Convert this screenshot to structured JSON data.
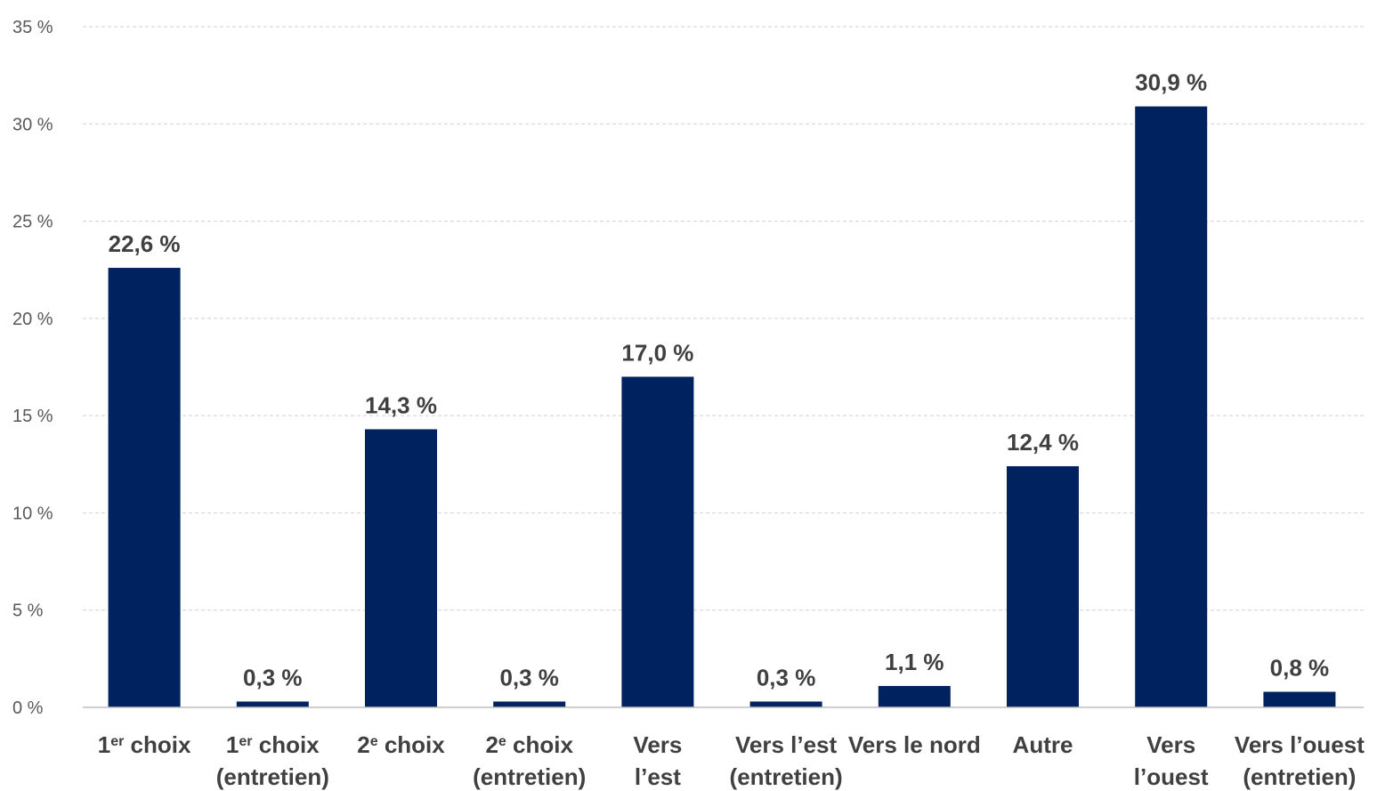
{
  "chart_data": {
    "type": "bar",
    "title": "",
    "xlabel": "",
    "ylabel": "",
    "ylim": [
      0,
      35
    ],
    "yticks": [
      "0 %",
      "5 %",
      "10 %",
      "15 %",
      "20 %",
      "25 %",
      "30 %",
      "35 %"
    ],
    "grid": true,
    "bar_color": "#00235F",
    "categories": [
      [
        "1er choix"
      ],
      [
        "1er choix",
        "(entretien)"
      ],
      [
        "2e choix"
      ],
      [
        "2e choix",
        "(entretien)"
      ],
      [
        "Vers",
        "l’est"
      ],
      [
        "Vers l’est",
        "(entretien)"
      ],
      [
        "Vers le nord"
      ],
      [
        "Autre"
      ],
      [
        "Vers",
        "l’ouest"
      ],
      [
        "Vers l’ouest",
        "(entretien)"
      ]
    ],
    "values": [
      22.6,
      0.3,
      14.3,
      0.3,
      17.0,
      0.3,
      1.1,
      12.4,
      30.9,
      0.8
    ],
    "data_labels": [
      "22,6 %",
      "0,3 %",
      "14,3 %",
      "0,3 %",
      "17,0 %",
      "0,3 %",
      "1,1 %",
      "12,4 %",
      "30,9 %",
      "0,8 %"
    ]
  }
}
